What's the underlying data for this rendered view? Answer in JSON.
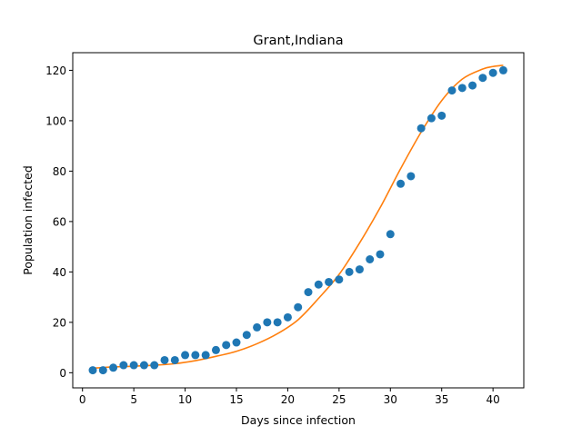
{
  "chart_data": {
    "type": "scatter",
    "title": "Grant,Indiana",
    "xlabel": "Days since infection",
    "ylabel": "Population infected",
    "xlim": [
      -0.95,
      43.0
    ],
    "ylim": [
      -6.0,
      127.0
    ],
    "xticks": [
      0,
      5,
      10,
      15,
      20,
      25,
      30,
      35,
      40
    ],
    "yticks": [
      0,
      20,
      40,
      60,
      80,
      100,
      120
    ],
    "grid": false,
    "series": [
      {
        "kind": "points",
        "color": "#1f77b4",
        "x": [
          1,
          2,
          3,
          4,
          5,
          6,
          7,
          8,
          9,
          10,
          11,
          12,
          13,
          14,
          15,
          16,
          17,
          18,
          19,
          20,
          21,
          22,
          23,
          24,
          25,
          26,
          27,
          28,
          29,
          30,
          31,
          32,
          33,
          34,
          35,
          36,
          37,
          38,
          39,
          40,
          41
        ],
        "y": [
          1,
          1,
          2,
          3,
          3,
          3,
          3,
          5,
          5,
          7,
          7,
          7,
          9,
          11,
          12,
          15,
          18,
          20,
          20,
          22,
          26,
          32,
          35,
          36,
          37,
          40,
          41,
          45,
          47,
          55,
          75,
          78,
          97,
          101,
          102,
          112,
          113,
          114,
          117,
          119,
          120
        ]
      },
      {
        "kind": "fit-line",
        "color": "#ff7f0e",
        "x": [
          1,
          3,
          5,
          7,
          9,
          11,
          13,
          15,
          17,
          19,
          21,
          23,
          25,
          27,
          29,
          31,
          33,
          35,
          37,
          39,
          40,
          41
        ],
        "y": [
          1.8,
          2.3,
          2.6,
          3.0,
          3.6,
          4.8,
          6.5,
          8.5,
          11.5,
          15.5,
          21.0,
          29.5,
          39.0,
          51.5,
          65.5,
          81.0,
          95.5,
          108.0,
          116.5,
          120.5,
          121.5,
          122.0
        ]
      }
    ]
  }
}
